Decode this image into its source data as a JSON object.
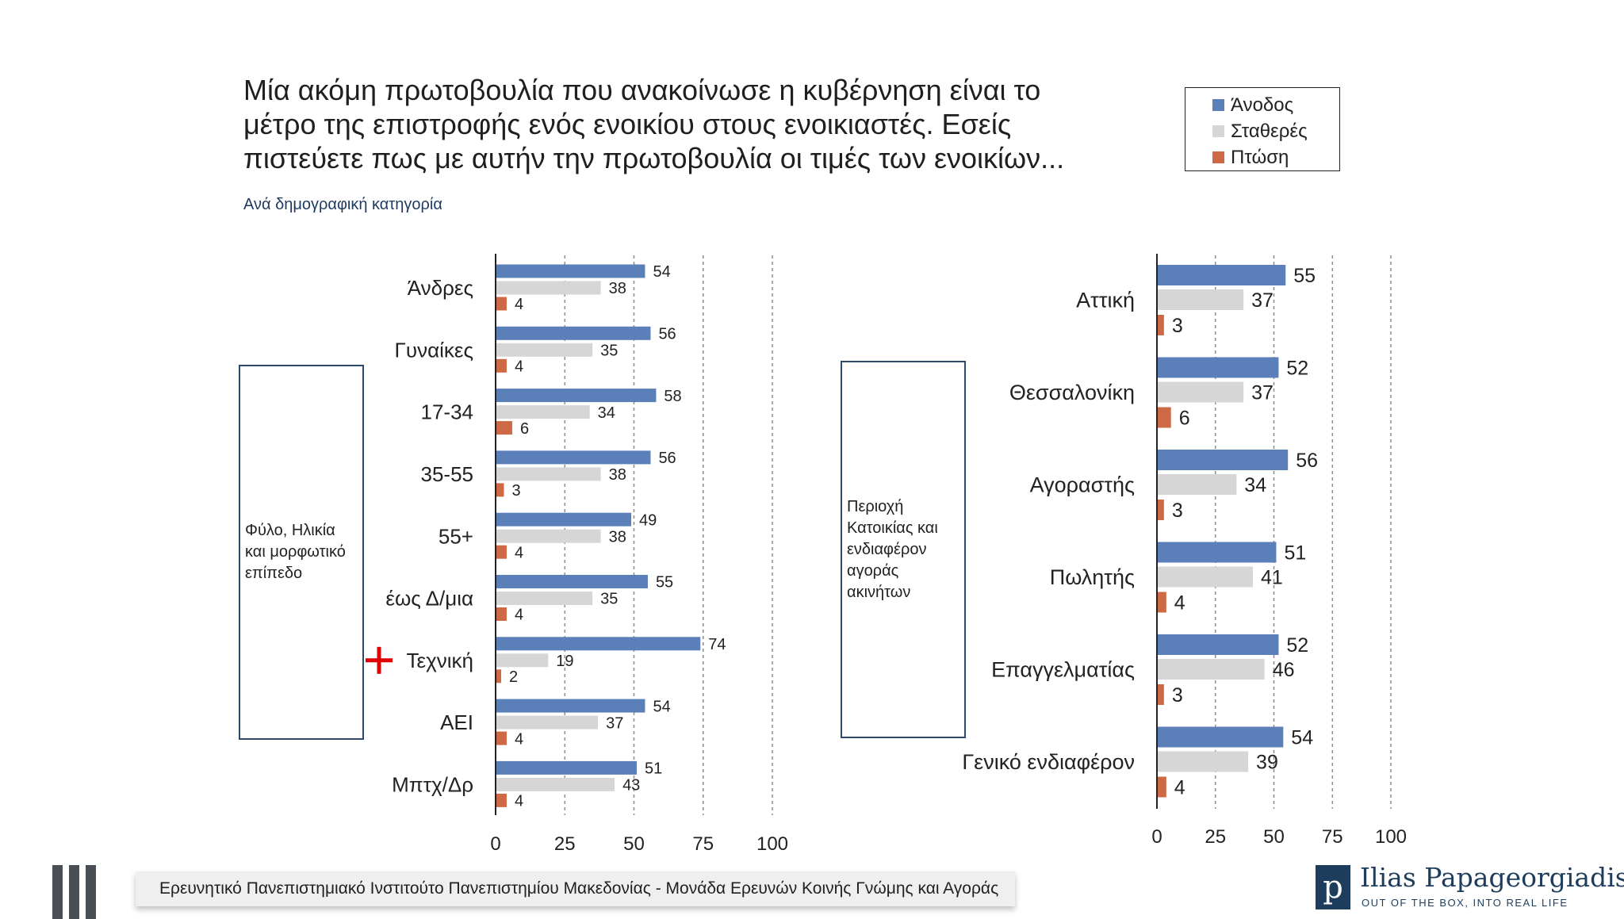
{
  "header": {
    "title_lines": [
      "Μία ακόμη πρωτοβουλία που ανακοίνωσε η κυβέρνηση είναι το",
      "μέτρο της επιστροφής ενός ενοικίου στους ενοικιαστές. Εσείς",
      "πιστεύετε πως με αυτήν την πρωτοβουλία οι τιμές των ενοικίων..."
    ],
    "subtitle": "Ανά δημογραφική κατηγορία"
  },
  "legend": {
    "items": [
      {
        "label": "Άνοδος",
        "color": "#5b7fb8"
      },
      {
        "label": "Σταθερές",
        "color": "#d6d6d6"
      },
      {
        "label": "Πτώση",
        "color": "#cd6a45"
      }
    ]
  },
  "groups": {
    "left_label": "Φύλο, Ηλικία και μορφωτικό επίπεδο",
    "right_label": "Περιοχή Κατοικίας και ενδιαφέρον αγοράς ακινήτων"
  },
  "markers": {
    "highlight_icon": "red-cross-icon",
    "highlight_category": "Τεχνική",
    "highlight_color": "#e00000"
  },
  "chart_data": [
    {
      "type": "bar",
      "orientation": "horizontal",
      "categories": [
        "Άνδρες",
        "Γυναίκες",
        "17-34",
        "35-55",
        "55+",
        "έως Δ/μια",
        "Τεχνική",
        "ΑΕΙ",
        "Μπτχ/Δρ"
      ],
      "series": [
        {
          "name": "Άνοδος",
          "values": [
            54,
            56,
            58,
            56,
            49,
            55,
            74,
            54,
            51
          ]
        },
        {
          "name": "Σταθερές",
          "values": [
            38,
            35,
            34,
            38,
            38,
            35,
            19,
            37,
            43
          ]
        },
        {
          "name": "Πτώση",
          "values": [
            4,
            4,
            6,
            3,
            4,
            4,
            2,
            4,
            4
          ]
        }
      ],
      "xlim": [
        0,
        100
      ],
      "xticks": [
        0,
        25,
        50,
        75,
        100
      ],
      "grid": "vertical-dashed",
      "data_labels": true
    },
    {
      "type": "bar",
      "orientation": "horizontal",
      "categories": [
        "Αττική",
        "Θεσσαλονίκη",
        "Αγοραστής",
        "Πωλητής",
        "Επαγγελματίας",
        "Γενικό ενδιαφέρον"
      ],
      "series": [
        {
          "name": "Άνοδος",
          "values": [
            55,
            52,
            56,
            51,
            52,
            54
          ]
        },
        {
          "name": "Σταθερές",
          "values": [
            37,
            37,
            34,
            41,
            46,
            39
          ]
        },
        {
          "name": "Πτώση",
          "values": [
            3,
            6,
            3,
            4,
            3,
            4
          ]
        }
      ],
      "xlim": [
        0,
        100
      ],
      "xticks": [
        0,
        25,
        50,
        75,
        100
      ],
      "grid": "vertical-dashed",
      "data_labels": true
    }
  ],
  "footer": {
    "institute": "Ερευνητικό Πανεπιστημιακό Ινστιτούτο Πανεπιστημίου Μακεδονίας - Μονάδα Ερευνών Κοινής Γνώμης και Αγοράς",
    "brand_name": "Ilias Papageorgiadis",
    "brand_tagline": "OUT OF THE BOX, INTO REAL LIFE",
    "brand_initial": "p"
  }
}
